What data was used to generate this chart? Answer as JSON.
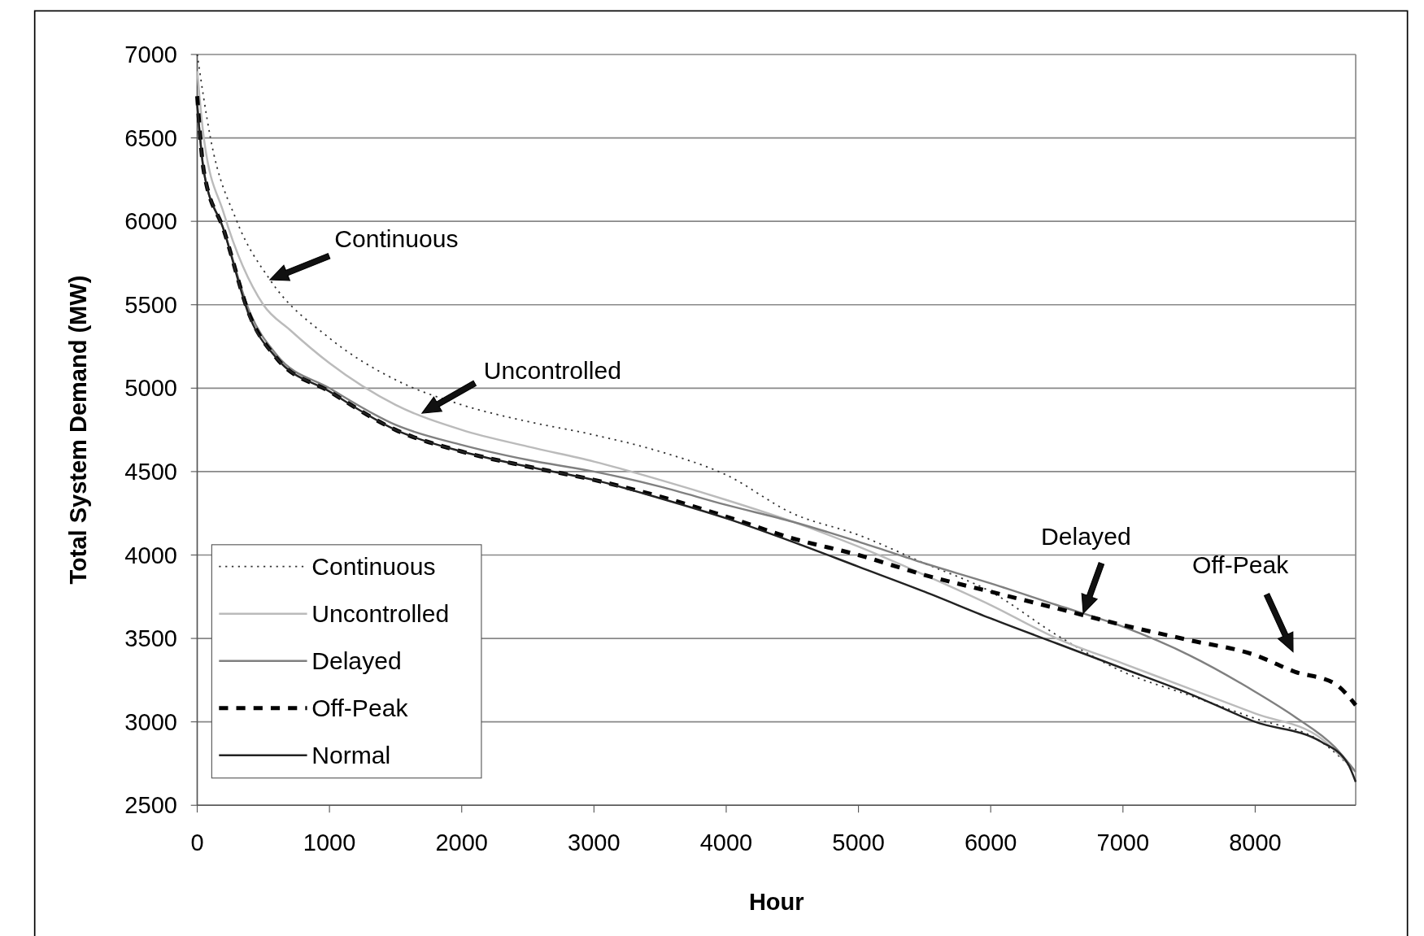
{
  "chart_data": {
    "type": "line",
    "xlabel": "Hour",
    "ylabel": "Total System Demand (MW)",
    "xlim": [
      0,
      8760
    ],
    "xticks": [
      0,
      1000,
      2000,
      3000,
      4000,
      5000,
      6000,
      7000,
      8000
    ],
    "ylim": [
      2500,
      7000
    ],
    "yticks": [
      2500,
      3000,
      3500,
      4000,
      4500,
      5000,
      5500,
      6000,
      6500,
      7000
    ],
    "grid": "y",
    "legend": "bottom left",
    "series": [
      {
        "name": "Continuous",
        "color": "#333333",
        "line_style": "dotted",
        "x": [
          0,
          100,
          300,
          550,
          1000,
          1500,
          2000,
          2500,
          3000,
          3500,
          4000,
          4500,
          5000,
          5500,
          6000,
          6500,
          7000,
          7500,
          8000,
          8500,
          8760
        ],
        "values": [
          7000,
          6500,
          6000,
          5650,
          5300,
          5050,
          4900,
          4800,
          4720,
          4620,
          4480,
          4250,
          4120,
          3950,
          3780,
          3520,
          3300,
          3160,
          3020,
          2880,
          2700
        ]
      },
      {
        "name": "Uncontrolled",
        "color": "#bbbbbb",
        "line_style": "solid",
        "x": [
          0,
          50,
          200,
          500,
          700,
          1000,
          1500,
          2000,
          2500,
          3000,
          3500,
          4000,
          4500,
          5000,
          5500,
          6000,
          6500,
          7000,
          7500,
          8000,
          8500,
          8760
        ],
        "values": [
          6900,
          6500,
          6050,
          5500,
          5350,
          5150,
          4900,
          4750,
          4650,
          4560,
          4450,
          4330,
          4200,
          4050,
          3880,
          3700,
          3500,
          3350,
          3200,
          3050,
          2900,
          2700
        ]
      },
      {
        "name": "Delayed",
        "color": "#808080",
        "line_style": "solid",
        "x": [
          0,
          50,
          200,
          400,
          600,
          1000,
          1500,
          2000,
          2500,
          3000,
          3500,
          4000,
          4500,
          5000,
          5500,
          6000,
          6500,
          7000,
          7500,
          8000,
          8300,
          8600,
          8760
        ],
        "values": [
          6700,
          6300,
          5950,
          5450,
          5200,
          5000,
          4780,
          4660,
          4570,
          4500,
          4410,
          4300,
          4200,
          4080,
          3950,
          3830,
          3700,
          3570,
          3400,
          3180,
          3030,
          2850,
          2700
        ]
      },
      {
        "name": "Off-Peak",
        "color": "#000000",
        "line_style": "dashed",
        "x": [
          0,
          50,
          200,
          400,
          600,
          1000,
          1500,
          2000,
          2500,
          3000,
          3500,
          4000,
          4500,
          5000,
          5500,
          6000,
          6500,
          7000,
          7500,
          8000,
          8300,
          8600,
          8760
        ],
        "values": [
          6750,
          6300,
          5950,
          5430,
          5180,
          4980,
          4750,
          4620,
          4530,
          4450,
          4350,
          4230,
          4100,
          4000,
          3880,
          3780,
          3680,
          3580,
          3490,
          3400,
          3300,
          3230,
          3100
        ]
      },
      {
        "name": "Normal",
        "color": "#222222",
        "line_style": "solid",
        "x": [
          0,
          50,
          200,
          400,
          600,
          1000,
          1500,
          2000,
          2500,
          3000,
          3500,
          4000,
          4500,
          5000,
          5500,
          6000,
          6500,
          7000,
          7500,
          8000,
          8500,
          8700,
          8760
        ],
        "values": [
          6700,
          6300,
          5950,
          5420,
          5180,
          4980,
          4750,
          4620,
          4530,
          4450,
          4340,
          4220,
          4080,
          3930,
          3780,
          3620,
          3470,
          3320,
          3170,
          3000,
          2880,
          2750,
          2640
        ]
      }
    ],
    "annotations": [
      {
        "text": "Continuous",
        "x": 550,
        "y": 5650
      },
      {
        "text": "Uncontrolled",
        "x": 1700,
        "y": 4850
      },
      {
        "text": "Delayed",
        "x": 6700,
        "y": 3650
      },
      "Off-Peak"
    ]
  }
}
